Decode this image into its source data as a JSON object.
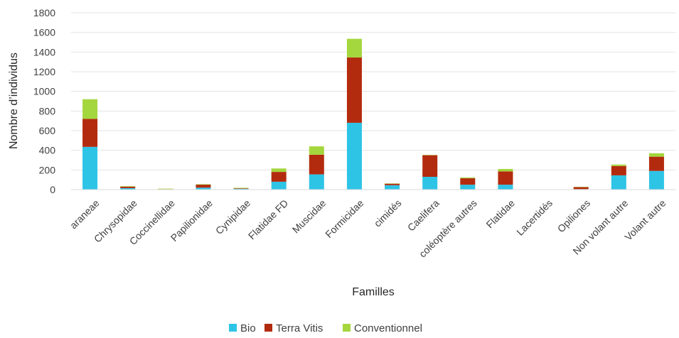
{
  "chart_data": {
    "type": "bar",
    "stacked": true,
    "title": "",
    "xlabel": "Familles",
    "ylabel": "Nombre d’individus",
    "ylim": [
      0,
      1800
    ],
    "yticks": [
      0,
      200,
      400,
      600,
      800,
      1000,
      1200,
      1400,
      1600,
      1800
    ],
    "grid": "horizontal",
    "legend": "bottom",
    "categories": [
      "araneae",
      "Chrysopidae",
      "Coccinellidae",
      "Papilionidae",
      "Cynipidae",
      "Flatidae FD",
      "Muscidae",
      "Formicidae",
      "cimidés",
      "Caelifera",
      "coléoptère autres",
      "Flatidae",
      "Lacertidés",
      "Opiliones",
      "Non volant autre",
      "Volant autre"
    ],
    "series": [
      {
        "name": "Bio",
        "color": "#2ec4e6",
        "values": [
          435,
          15,
          2,
          20,
          8,
          80,
          155,
          680,
          45,
          130,
          50,
          50,
          0,
          5,
          145,
          190
        ]
      },
      {
        "name": "Terra Vitis",
        "color": "#b32b0e",
        "values": [
          285,
          15,
          3,
          30,
          5,
          100,
          200,
          665,
          15,
          220,
          65,
          135,
          0,
          20,
          95,
          145
        ]
      },
      {
        "name": "Conventionnel",
        "color": "#a4d63e",
        "values": [
          200,
          5,
          5,
          5,
          5,
          35,
          85,
          190,
          3,
          3,
          8,
          25,
          0,
          3,
          15,
          35
        ]
      }
    ]
  }
}
